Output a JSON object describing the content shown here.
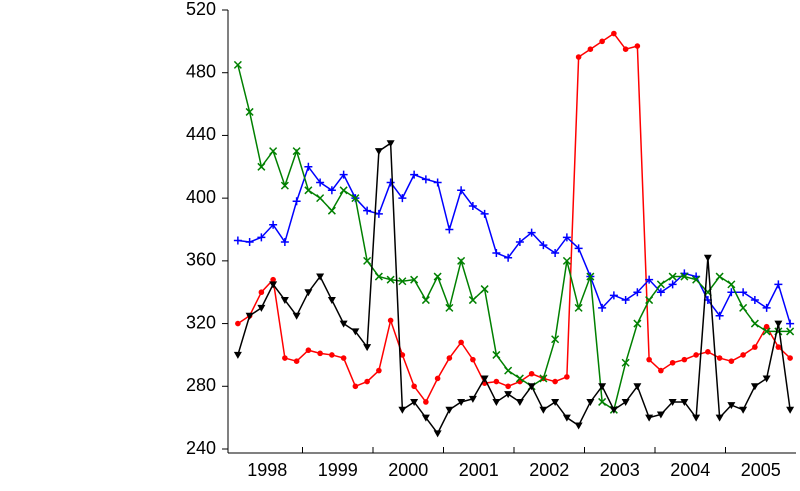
{
  "chart_data": {
    "type": "line",
    "categories": [
      null,
      null,
      null,
      "1998",
      null,
      null,
      null,
      null,
      null,
      "1999",
      null,
      null,
      null,
      null,
      null,
      "2000",
      null,
      null,
      null,
      null,
      null,
      "2001",
      null,
      null,
      null,
      null,
      null,
      "2002",
      null,
      null,
      null,
      null,
      null,
      "2003",
      null,
      null,
      null,
      null,
      null,
      "2004",
      null,
      null,
      null,
      null,
      null,
      "2005",
      null,
      null
    ],
    "ylim": [
      240,
      520
    ],
    "yticks": [
      240,
      280,
      320,
      360,
      400,
      440,
      480,
      520
    ],
    "series": [
      {
        "color": "#ff0000",
        "marker": "circle",
        "values": [
          320,
          325,
          340,
          348,
          298,
          296,
          303,
          301,
          300,
          298,
          280,
          283,
          290,
          322,
          300,
          280,
          270,
          285,
          298,
          308,
          297,
          282,
          283,
          280,
          283,
          288,
          285,
          283,
          286,
          490,
          495,
          500,
          505,
          495,
          497,
          297,
          290,
          295,
          297,
          300,
          302,
          298,
          296,
          300,
          305,
          318,
          305,
          298
        ]
      },
      {
        "color": "#0000ff",
        "marker": "plus",
        "values": [
          373,
          372,
          375,
          383,
          372,
          398,
          420,
          410,
          405,
          415,
          400,
          392,
          390,
          410,
          400,
          415,
          412,
          410,
          380,
          405,
          395,
          390,
          365,
          362,
          372,
          378,
          370,
          365,
          375,
          368,
          350,
          330,
          338,
          335,
          340,
          348,
          340,
          345,
          352,
          350,
          335,
          325,
          340,
          340,
          335,
          330,
          345,
          320
        ]
      },
      {
        "color": "#008000",
        "marker": "cross",
        "values": [
          485,
          455,
          420,
          430,
          408,
          430,
          405,
          400,
          392,
          405,
          400,
          360,
          350,
          348,
          347,
          348,
          335,
          350,
          330,
          360,
          335,
          342,
          300,
          290,
          285,
          280,
          285,
          310,
          360,
          330,
          350,
          270,
          265,
          295,
          320,
          335,
          345,
          350,
          350,
          348,
          340,
          350,
          345,
          330,
          320,
          315,
          315,
          315
        ]
      },
      {
        "color": "#000000",
        "marker": "triangle",
        "values": [
          300,
          325,
          330,
          345,
          335,
          325,
          340,
          350,
          335,
          320,
          315,
          305,
          430,
          435,
          265,
          270,
          260,
          250,
          265,
          270,
          272,
          285,
          270,
          275,
          270,
          280,
          265,
          270,
          260,
          255,
          270,
          280,
          265,
          270,
          280,
          260,
          262,
          270,
          270,
          260,
          362,
          260,
          268,
          265,
          280,
          285,
          320,
          265
        ]
      }
    ]
  }
}
